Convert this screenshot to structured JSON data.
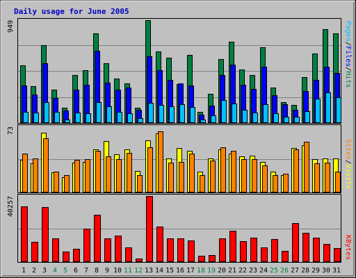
{
  "colors": {
    "background": "#c0c0c0",
    "border": "#000000",
    "grid": "#808080",
    "title": "#0000c0",
    "hits": "#008040",
    "files": "#0000ff",
    "pages": "#00c0ff",
    "visits": "#ffff00",
    "sites": "#ff8000",
    "kbytes": "#ff0000",
    "weekday": "#000000",
    "weekend": "#008040"
  },
  "chart_data": [
    {
      "type": "bar",
      "title": "Daily usage for June 2005",
      "panel": "hits-files-pages",
      "categories": [
        "1",
        "2",
        "3",
        "4",
        "5",
        "6",
        "7",
        "8",
        "9",
        "10",
        "11",
        "12",
        "13",
        "14",
        "15",
        "16",
        "17",
        "18",
        "19",
        "20",
        "21",
        "22",
        "23",
        "24",
        "25",
        "26",
        "27",
        "28",
        "29",
        "30",
        "31"
      ],
      "weekend_days": [
        "4",
        "5",
        "11",
        "12",
        "18",
        "19",
        "25",
        "26"
      ],
      "ymax": 949,
      "ymax_label": "949",
      "series": [
        {
          "name": "Hits",
          "values": [
            535,
            340,
            720,
            305,
            140,
            445,
            490,
            825,
            550,
            410,
            365,
            140,
            949,
            660,
            605,
            360,
            630,
            100,
            270,
            590,
            750,
            495,
            445,
            700,
            330,
            190,
            165,
            425,
            640,
            865,
            825
          ]
        },
        {
          "name": "Files",
          "values": [
            345,
            265,
            550,
            230,
            115,
            310,
            350,
            670,
            375,
            305,
            330,
            125,
            615,
            485,
            395,
            365,
            345,
            75,
            160,
            445,
            540,
            350,
            315,
            520,
            255,
            175,
            120,
            295,
            395,
            520,
            460
          ]
        },
        {
          "name": "Pages",
          "values": [
            100,
            95,
            195,
            100,
            30,
            95,
            90,
            190,
            155,
            100,
            90,
            45,
            185,
            165,
            155,
            170,
            145,
            30,
            70,
            210,
            180,
            120,
            95,
            170,
            90,
            60,
            55,
            110,
            225,
            285,
            235
          ]
        }
      ],
      "legend": [
        "Pages",
        "/",
        "Files",
        "/",
        "Hits"
      ]
    },
    {
      "type": "bar",
      "panel": "visits-sites",
      "categories": [
        "1",
        "2",
        "3",
        "4",
        "5",
        "6",
        "7",
        "8",
        "9",
        "10",
        "11",
        "12",
        "13",
        "14",
        "15",
        "16",
        "17",
        "18",
        "19",
        "20",
        "21",
        "22",
        "23",
        "24",
        "25",
        "26",
        "27",
        "28",
        "29",
        "30",
        "31"
      ],
      "ymax": 73,
      "ymax_label": "73",
      "series": [
        {
          "name": "Visits",
          "values": [
            36,
            32,
            66,
            22,
            17,
            33,
            34,
            48,
            57,
            42,
            48,
            24,
            58,
            65,
            38,
            49,
            46,
            23,
            38,
            48,
            43,
            40,
            41,
            34,
            23,
            19,
            49,
            52,
            37,
            38,
            38
          ]
        },
        {
          "name": "Sites",
          "values": [
            43,
            38,
            60,
            23,
            19,
            36,
            37,
            46,
            40,
            37,
            44,
            19,
            50,
            68,
            33,
            34,
            43,
            19,
            35,
            50,
            46,
            37,
            37,
            30,
            19,
            21,
            48,
            56,
            32,
            33,
            23
          ]
        }
      ],
      "legend": [
        "Sites",
        "/",
        "Visits"
      ]
    },
    {
      "type": "bar",
      "panel": "kbytes",
      "categories": [
        "1",
        "2",
        "3",
        "4",
        "5",
        "6",
        "7",
        "8",
        "9",
        "10",
        "11",
        "12",
        "13",
        "14",
        "15",
        "16",
        "17",
        "18",
        "19",
        "20",
        "21",
        "22",
        "23",
        "24",
        "25",
        "26",
        "27",
        "28",
        "29",
        "30",
        "31"
      ],
      "ymax": 40257,
      "ymax_label": "40257",
      "series": [
        {
          "name": "KBytes",
          "values": [
            33900,
            12500,
            33600,
            14400,
            6300,
            8000,
            20300,
            28700,
            14400,
            16000,
            8800,
            2100,
            40257,
            21500,
            14300,
            14600,
            13300,
            4000,
            4200,
            14600,
            18900,
            12700,
            14700,
            8900,
            13800,
            6900,
            23800,
            17800,
            14900,
            10900,
            8300
          ]
        }
      ],
      "legend": [
        "KBytes"
      ]
    }
  ]
}
